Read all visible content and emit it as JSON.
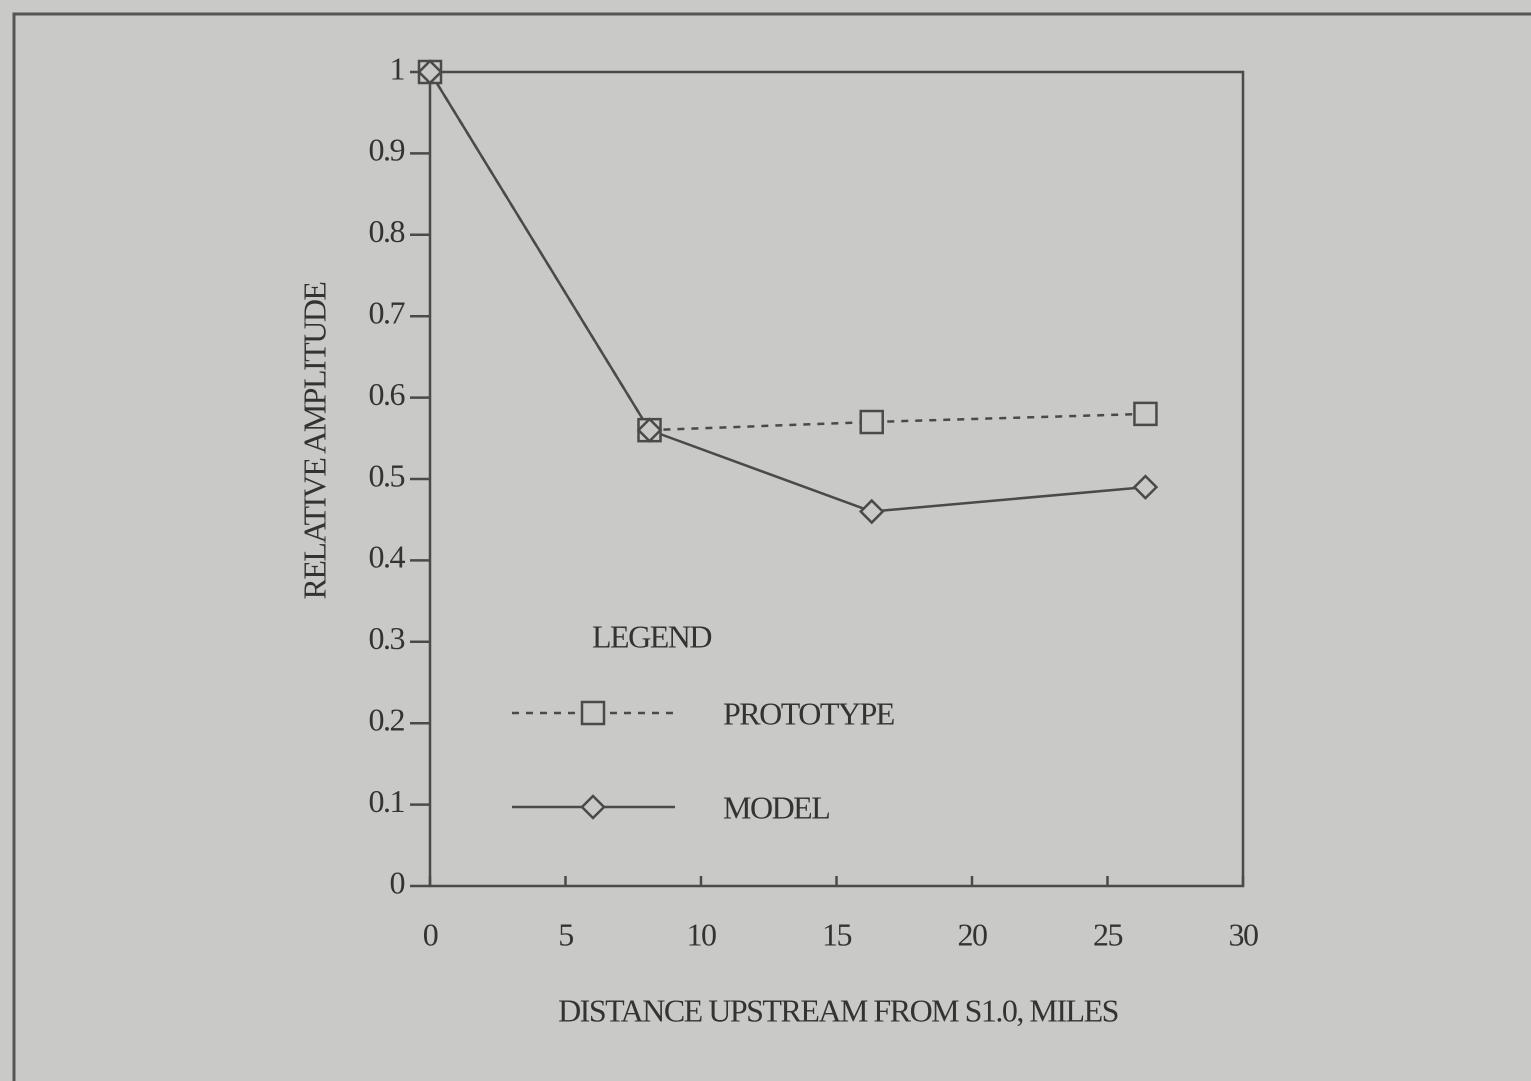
{
  "chart_data": {
    "type": "line",
    "x_label": "DISTANCE UPSTREAM FROM S1.0, MILES",
    "y_label": "RELATIVE AMPLITUDE",
    "legend_title": "LEGEND",
    "x": [
      0,
      8.1,
      16.3,
      26.4
    ],
    "series": [
      {
        "name": "PROTOTYPE",
        "color": "#4a4a4a",
        "style": "dashed",
        "marker": "square",
        "values": [
          1,
          0.56,
          0.57,
          0.58
        ]
      },
      {
        "name": "MODEL",
        "color": "#4a4a4a",
        "style": "solid",
        "marker": "diamond",
        "values": [
          1,
          0.56,
          0.46,
          0.49
        ]
      }
    ],
    "xlim": [
      0,
      30
    ],
    "xticks": [
      0,
      5,
      10,
      15,
      20,
      25,
      30
    ],
    "ylim": [
      0,
      1
    ],
    "yticks": [
      0,
      0.1,
      0.2,
      0.3,
      0.4,
      0.5,
      0.6,
      0.7,
      0.8,
      0.9,
      1
    ]
  }
}
